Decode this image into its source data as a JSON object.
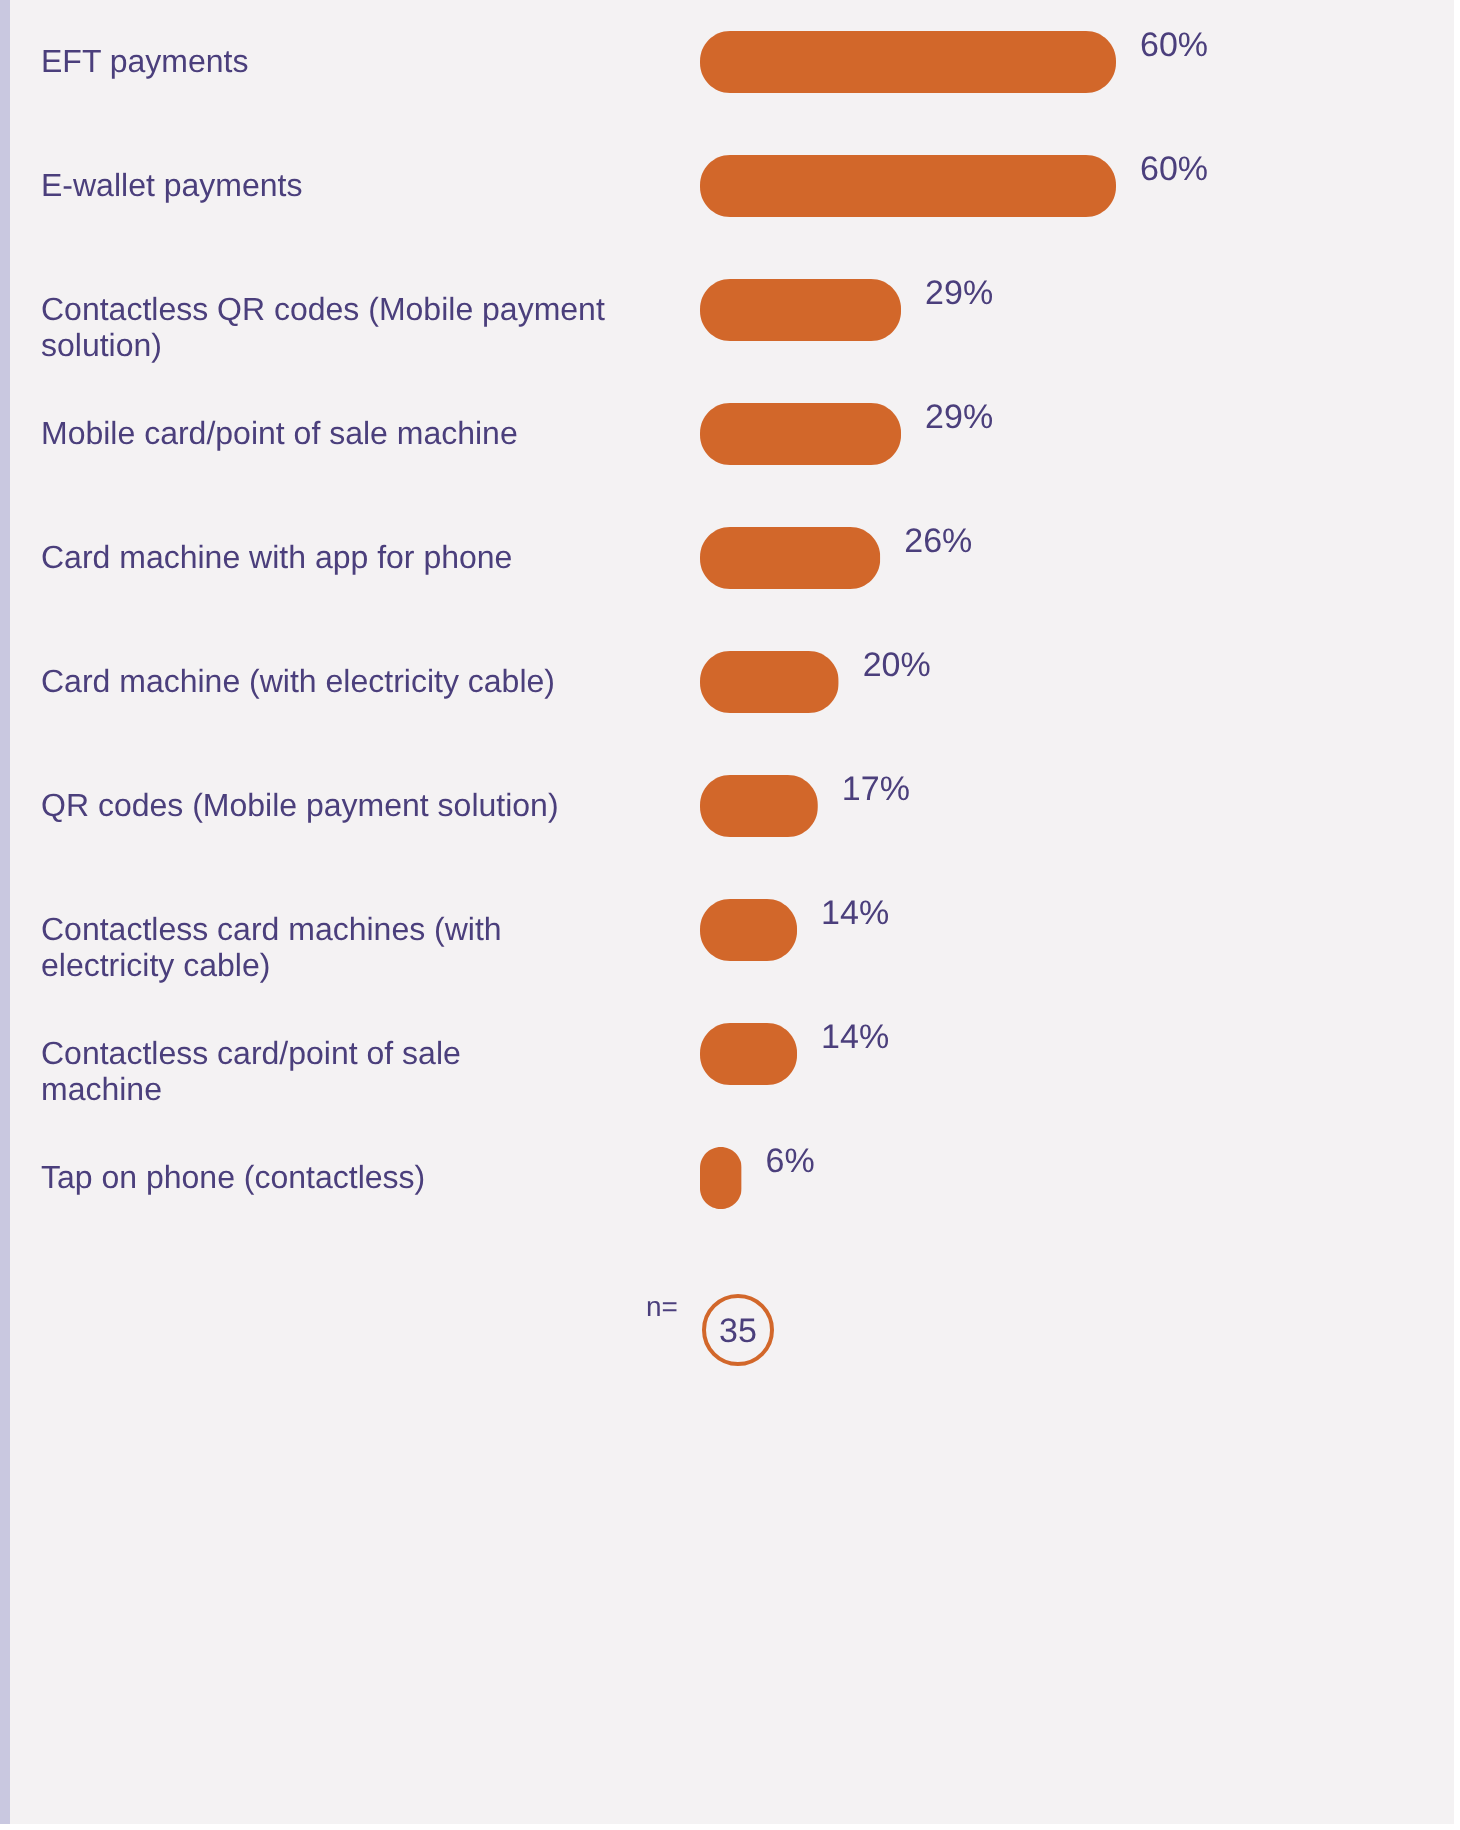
{
  "chart_data": {
    "type": "bar",
    "orientation": "horizontal",
    "value_labels": [
      "60%",
      "60%",
      "29%",
      "29%",
      "26%",
      "20%",
      "17%",
      "14%",
      "14%",
      "6%"
    ],
    "categories": [
      "EFT payments",
      "E-wallet payments",
      "Contactless QR codes (Mobile payment solution)",
      "Mobile card/point of sale machine",
      "Card machine with app for phone",
      "Card machine (with electricity cable)",
      "QR codes (Mobile payment solution)",
      "Contactless card machines (with electricity cable)",
      "Contactless card/point of sale machine",
      "Tap on phone (contactless)"
    ],
    "values": [
      60,
      60,
      29,
      29,
      26,
      20,
      17,
      14,
      14,
      6
    ],
    "color": "#d2672a",
    "annotations": [
      "n=",
      "35"
    ]
  }
}
